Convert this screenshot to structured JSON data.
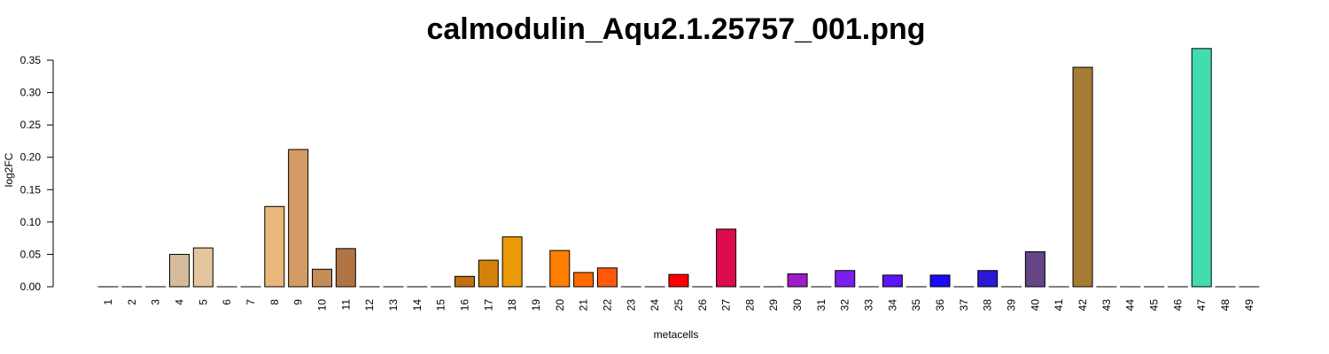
{
  "chart_data": {
    "type": "bar",
    "title": "calmodulin_Aqu2.1.25757_001.png",
    "xlabel": "metacells",
    "ylabel": "log2FC",
    "ylim": [
      0,
      0.35
    ],
    "yticks": [
      "0.00",
      "0.05",
      "0.10",
      "0.15",
      "0.20",
      "0.25",
      "0.30",
      "0.35"
    ],
    "grid": false,
    "categories": [
      "1",
      "2",
      "3",
      "4",
      "5",
      "6",
      "7",
      "8",
      "9",
      "10",
      "11",
      "12",
      "13",
      "14",
      "15",
      "16",
      "17",
      "18",
      "19",
      "20",
      "21",
      "22",
      "23",
      "24",
      "25",
      "26",
      "27",
      "28",
      "29",
      "30",
      "31",
      "32",
      "33",
      "34",
      "35",
      "36",
      "37",
      "38",
      "39",
      "40",
      "41",
      "42",
      "43",
      "44",
      "45",
      "46",
      "47",
      "48",
      "49"
    ],
    "values": [
      0,
      0,
      0,
      0.05,
      0.06,
      0,
      0,
      0.124,
      0.212,
      0.027,
      0.059,
      0,
      0,
      0,
      0,
      0.016,
      0.041,
      0.077,
      0,
      0.056,
      0.022,
      0.029,
      0,
      0,
      0.019,
      0,
      0.089,
      0,
      0,
      0.02,
      0,
      0.025,
      0,
      0.018,
      0,
      0.018,
      0,
      0.025,
      0,
      0.054,
      0,
      0.339,
      0,
      0,
      0,
      0,
      0.368,
      0,
      0
    ],
    "colors": [
      "#d2b48c",
      "#d2b48c",
      "#d2b48c",
      "#d4bc9a",
      "#e4c59d",
      "#d6a06b",
      "#d6a06b",
      "#e8b77a",
      "#d49b65",
      "#c48c58",
      "#b07444",
      "#b07444",
      "#b07444",
      "#b07444",
      "#b07444",
      "#c07010",
      "#d4820c",
      "#eb9a0a",
      "#eb9a0a",
      "#ff7f00",
      "#ff6a00",
      "#ff5a0a",
      "#ff3a00",
      "#ff2000",
      "#ff0000",
      "#f00030",
      "#dd0b4e",
      "#dd0b4e",
      "#b81bb0",
      "#a01bc8",
      "#9a1be0",
      "#7d1ef0",
      "#6a20f0",
      "#5a15f8",
      "#3a10f8",
      "#1a0af8",
      "#2010e0",
      "#2a1ad8",
      "#4a30b0",
      "#654586",
      "#8a6040",
      "#a67c35",
      "#a67c35",
      "#a67c35",
      "#a67c35",
      "#a67c35",
      "#43dcae",
      "#43dcae",
      "#43dcae"
    ]
  }
}
